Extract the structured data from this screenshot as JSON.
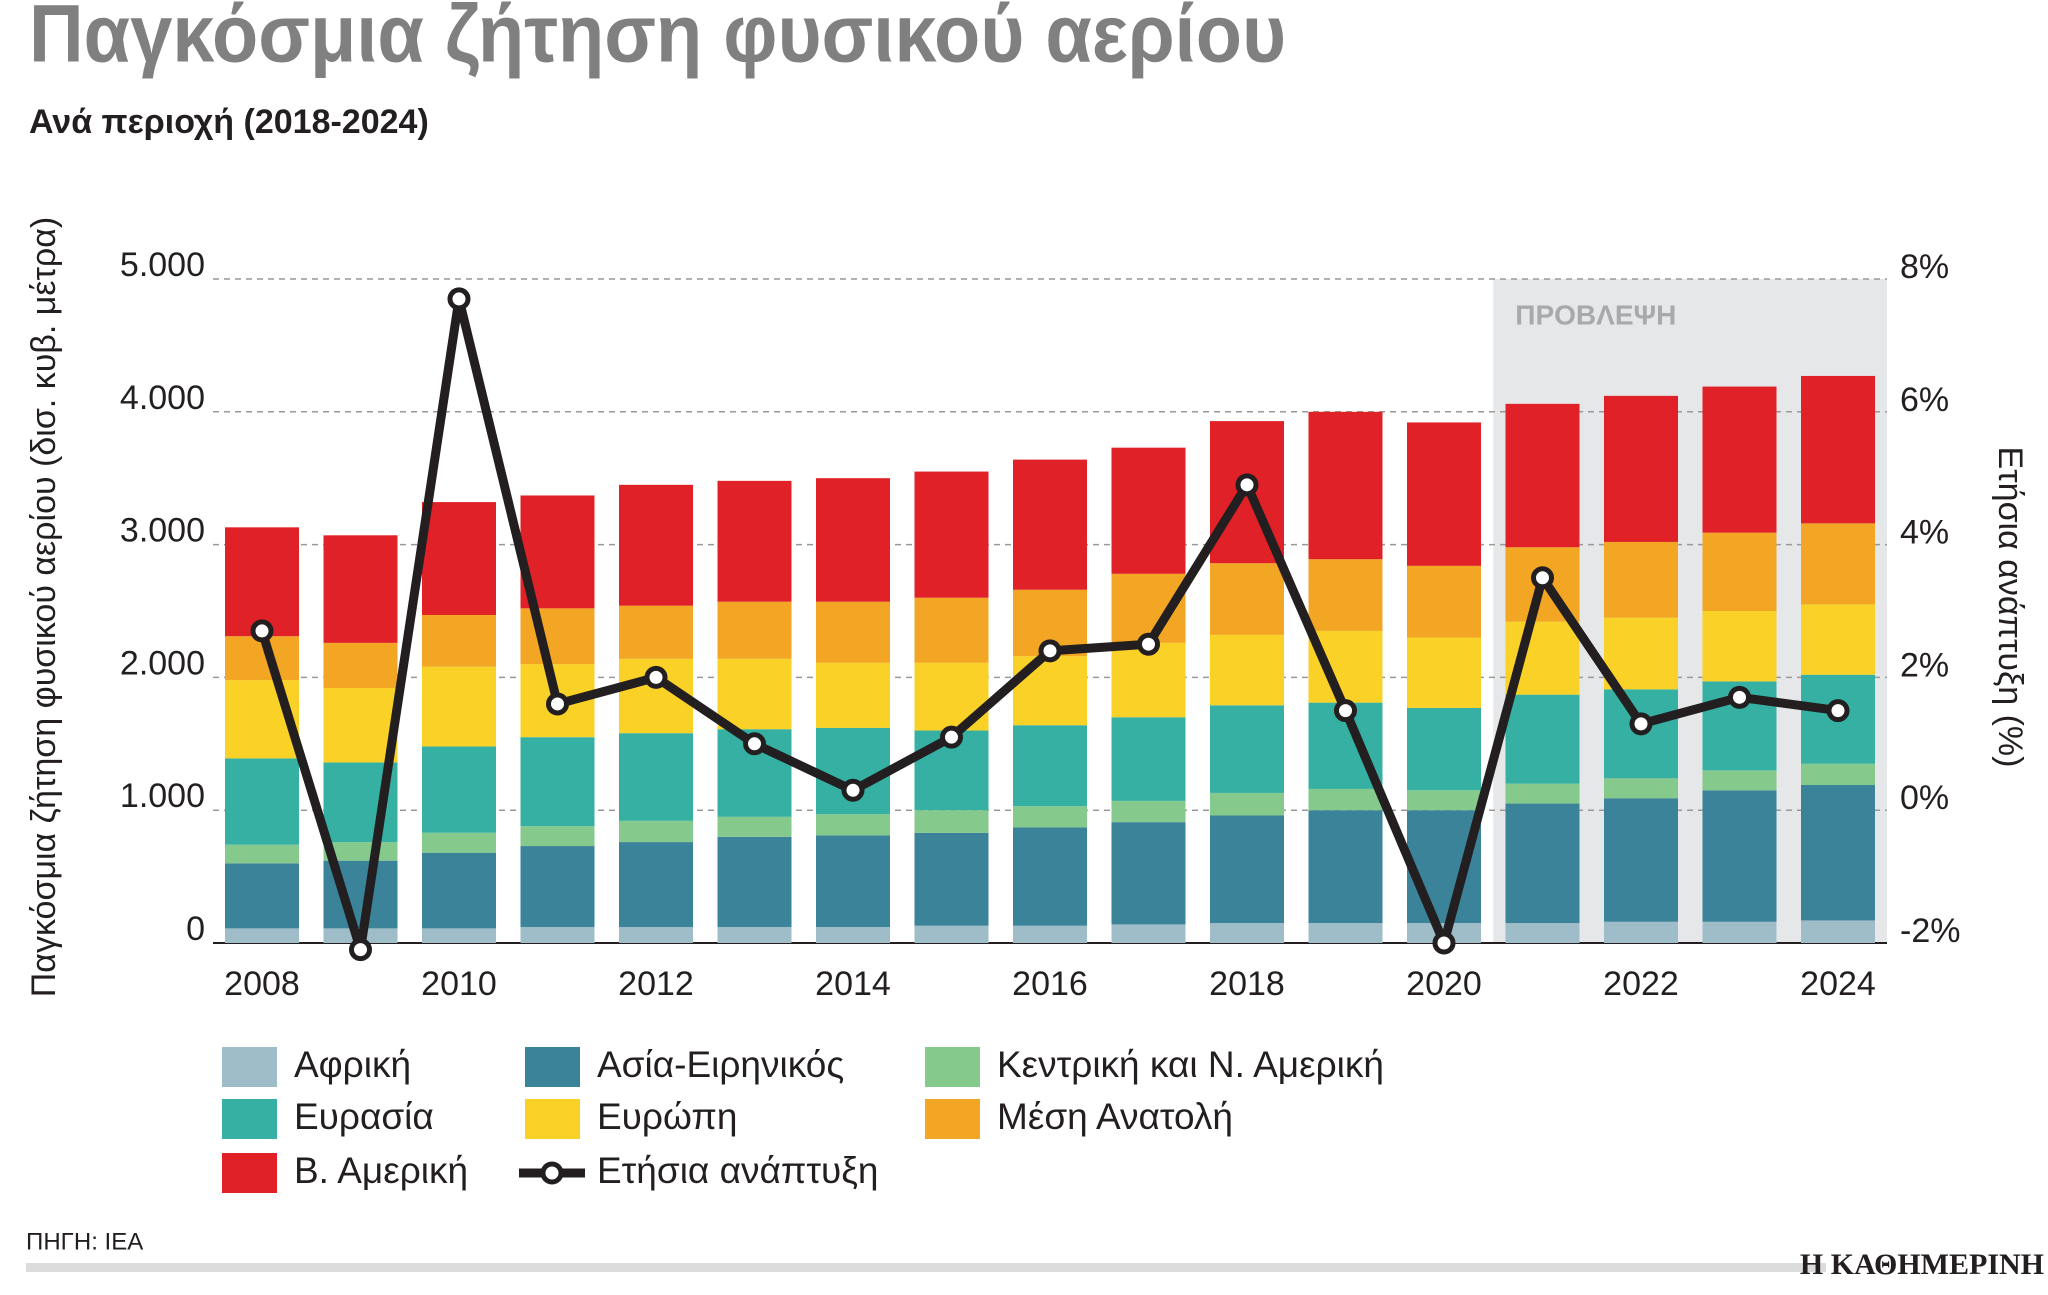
{
  "chart_data": {
    "type": "bar",
    "stacked": true,
    "title": "Παγκόσμια ζήτηση φυσικού αερίου",
    "subtitle": "Ανά περιοχή (2018-2024)",
    "y_label": "Παγκόσμια ζήτηση φυσικού αερίου (δισ. κυβ. μέτρα)",
    "y2_label": "Ετήσια ανάπτυξη (%)",
    "source": "ΠΗΓΗ: IEA",
    "brand": "Η ΚΑΘΗΜΕΡΙΝΗ",
    "forecast": {
      "label": "ΠΡΟΒΛΕΨΗ",
      "start_index": 13
    },
    "categories": [
      "2008",
      null,
      "2010",
      null,
      "2012",
      null,
      "2014",
      null,
      "2016",
      null,
      "2018",
      null,
      "2020",
      null,
      "2022",
      null,
      "2024"
    ],
    "ylim": [
      0,
      5000
    ],
    "yticks": [
      0,
      {
        "value": 1000,
        "label": "1.000"
      },
      {
        "value": 2000,
        "label": "2.000"
      },
      {
        "value": 3000,
        "label": "3.000"
      },
      {
        "value": 4000,
        "label": "4.000"
      },
      {
        "value": 5000,
        "label": "5.000"
      }
    ],
    "y2lim": [
      -2,
      8
    ],
    "y2ticks": [
      {
        "value": -2,
        "label": "-2%"
      },
      {
        "value": 0,
        "label": "0%"
      },
      {
        "value": 2,
        "label": "2%"
      },
      {
        "value": 4,
        "label": "4%"
      },
      {
        "value": 6,
        "label": "6%"
      },
      {
        "value": 8,
        "label": "8%"
      }
    ],
    "grid": true,
    "series": [
      {
        "name": "Αφρική",
        "color": "#9fbcc9",
        "values": [
          110,
          110,
          110,
          120,
          120,
          120,
          120,
          130,
          130,
          140,
          150,
          150,
          150,
          150,
          160,
          160,
          170
        ]
      },
      {
        "name": "Ασία-Ειρηνικός",
        "color": "#3b8399",
        "values": [
          490,
          510,
          570,
          610,
          640,
          680,
          690,
          700,
          740,
          770,
          810,
          850,
          850,
          900,
          930,
          990,
          1020
        ]
      },
      {
        "name": "Κεντρική και Ν. Αμερική",
        "color": "#86c98c",
        "values": [
          140,
          140,
          150,
          150,
          160,
          150,
          160,
          170,
          160,
          160,
          170,
          160,
          150,
          150,
          150,
          150,
          160
        ]
      },
      {
        "name": "Ευρασία",
        "color": "#35b0a3",
        "values": [
          650,
          600,
          650,
          670,
          660,
          660,
          650,
          600,
          610,
          630,
          660,
          650,
          620,
          670,
          670,
          670,
          670
        ]
      },
      {
        "name": "Ευρώπη",
        "color": "#f9d127",
        "values": [
          590,
          560,
          600,
          550,
          560,
          530,
          490,
          510,
          520,
          560,
          530,
          540,
          530,
          550,
          540,
          530,
          530
        ]
      },
      {
        "name": "Μέση Ανατολή",
        "color": "#f2a623",
        "values": [
          330,
          340,
          390,
          420,
          400,
          430,
          460,
          490,
          500,
          520,
          540,
          540,
          540,
          560,
          570,
          590,
          610
        ]
      },
      {
        "name": "Β. Αμερική",
        "color": "#e02127",
        "values": [
          820,
          810,
          850,
          850,
          910,
          910,
          930,
          950,
          980,
          950,
          1070,
          1110,
          1080,
          1080,
          1100,
          1100,
          1110
        ]
      },
      {
        "name": "Ετήσια ανάπτυξη",
        "color": "#231f20",
        "type": "line",
        "axis": "y2",
        "values": [
          2.7,
          -2.1,
          7.7,
          1.6,
          2.0,
          1.0,
          0.3,
          1.1,
          2.4,
          2.5,
          4.9,
          1.5,
          -2.0,
          3.5,
          1.3,
          1.7,
          1.5
        ]
      }
    ]
  }
}
